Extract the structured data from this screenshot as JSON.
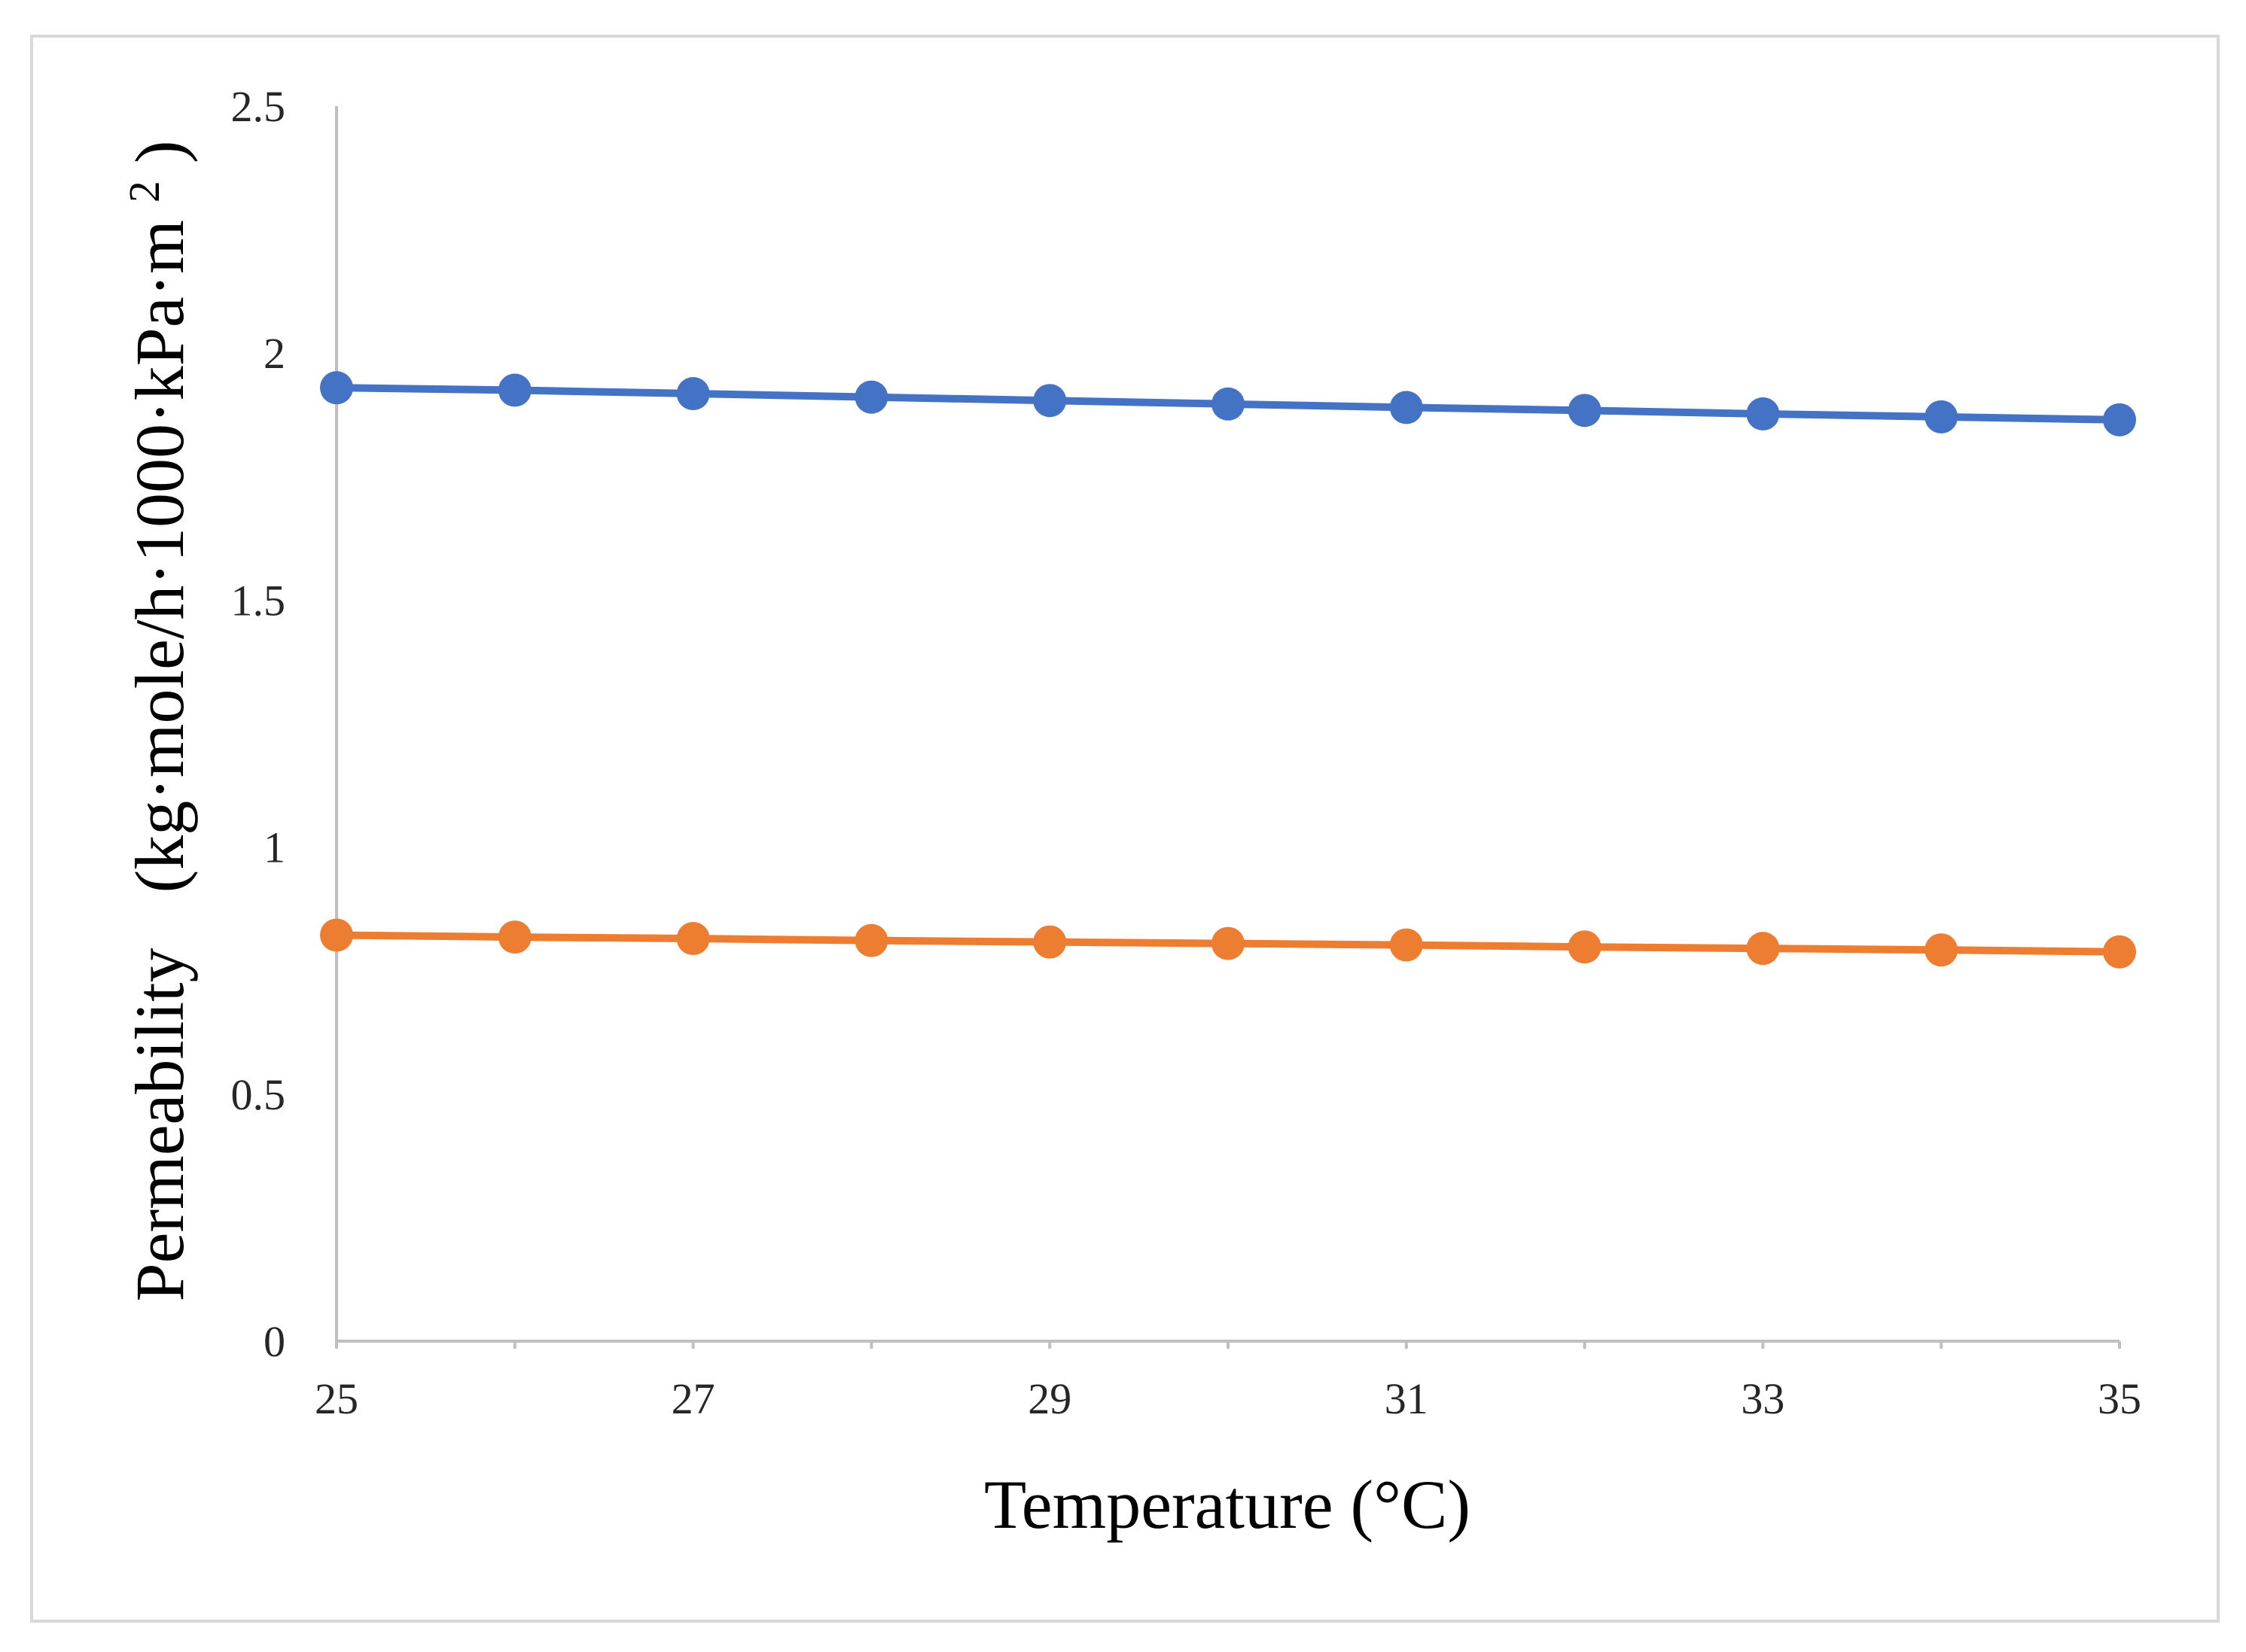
{
  "chart_data": {
    "type": "line",
    "title": "",
    "xlabel": "Temperature (°C)",
    "ylabel_main": "Permeability",
    "ylabel_units": "(kg·mole/h·1000·kPa·m",
    "ylabel_sup": "2",
    "ylabel_close": ")",
    "xlim": [
      25,
      35
    ],
    "ylim": [
      0,
      2.5
    ],
    "x_ticks": [
      "25",
      "27",
      "29",
      "31",
      "33",
      "35"
    ],
    "y_ticks": [
      "0",
      "0.5",
      "1",
      "1.5",
      "2",
      "2.5"
    ],
    "x": [
      25,
      26,
      27,
      28,
      29,
      30,
      31,
      32,
      33,
      34,
      35
    ],
    "grid": false,
    "series": [
      {
        "name": "blue",
        "color": "#4472C4",
        "values": [
          1.93,
          1.925,
          1.918,
          1.911,
          1.904,
          1.897,
          1.89,
          1.884,
          1.877,
          1.871,
          1.865
        ]
      },
      {
        "name": "orange",
        "color": "#ED7D31",
        "values": [
          0.822,
          0.818,
          0.815,
          0.811,
          0.808,
          0.805,
          0.802,
          0.798,
          0.795,
          0.792,
          0.788
        ]
      }
    ]
  }
}
